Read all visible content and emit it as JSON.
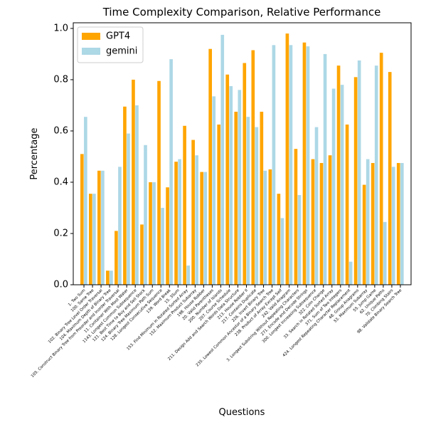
{
  "chart_data": {
    "type": "bar",
    "title": "Time Complexity Comparison, Relative Performance",
    "x_label": "Questions",
    "y_label": "Percentage",
    "categories": [
      "1. Two Sum",
      "100. Same Tree",
      "102. Binary Tree Level Order Traversal",
      "104. Maximum Depth of Binary Tree",
      "105. Construct Binary Tree from Preorder and Inorder Traversal",
      "11. Container With Most Water",
      "1143. Longest Common Subsequence",
      "121. Best Time to Buy and Sell Stock",
      "124. Binary Tree Maximum Path Sum",
      "128. Longest Consecutive Sequence",
      "139. Word Break",
      "15. 3Sum",
      "153. Find Minimum in Rotated Sorted Array",
      "152. Maximum Product Subarray",
      "198. House Robber",
      "20. Valid Parentheses",
      "200. Number of Islands",
      "207. Course Schedule",
      "211. Design Add and Search Words Data Structure",
      "213. House Robber II",
      "217. Contains Duplicate",
      "226. Invert Binary Tree",
      "235. Lowest Common Ancestor of a Binary Search Tree",
      "238. Product of Array Except Self",
      "242. Valid Anagram",
      "3. Longest Substring Without Repeating Characters",
      "271. Encode and Decode Strings",
      "300. Longest Increasing Subsequence",
      "322. Coin Change",
      "33. Search in Rotated Sorted Array",
      "371. Sum of Two Integers",
      "424. Longest Repeating Character Replacement",
      "48. Group Anagrams",
      "53. Maximum Subarray",
      "55. Jump Game",
      "62. Unique Paths",
      "70. Climbing Stairs",
      "98. Validate Binary Search Tree"
    ],
    "series": [
      {
        "name": "GPT4",
        "color": "#ffa500",
        "values": [
          0.51,
          0.355,
          0.445,
          0.055,
          0.21,
          0.695,
          0.8,
          0.235,
          0.4,
          0.795,
          0.38,
          0.48,
          0.62,
          0.565,
          0.44,
          0.92,
          0.625,
          0.82,
          0.675,
          0.865,
          0.915,
          0.675,
          0.45,
          0.355,
          0.98,
          0.53,
          0.945,
          0.49,
          0.475,
          0.505,
          0.855,
          0.625,
          0.81,
          0.39,
          0.475,
          0.905,
          0.83,
          0.475
        ]
      },
      {
        "name": "gemini",
        "color": "#add8e6",
        "values": [
          0.655,
          0.355,
          0.445,
          0.055,
          0.46,
          0.59,
          0.7,
          0.545,
          0.4,
          0.3,
          0.88,
          0.49,
          0.075,
          0.505,
          0.44,
          0.735,
          0.975,
          0.775,
          0.76,
          0.655,
          0.615,
          0.445,
          0.935,
          0.26,
          0.935,
          0.35,
          0.93,
          0.615,
          0.9,
          0.765,
          0.78,
          0.09,
          0.875,
          0.49,
          0.855,
          0.245,
          0.46,
          0.475
        ]
      }
    ],
    "ylim": [
      0,
      1.022
    ],
    "yticks": [
      {
        "value": 0,
        "label": "0.0"
      },
      0.2,
      0.4,
      0.6,
      0.8,
      {
        "value": 1,
        "label": "1.0"
      }
    ],
    "legend": "upper left"
  }
}
